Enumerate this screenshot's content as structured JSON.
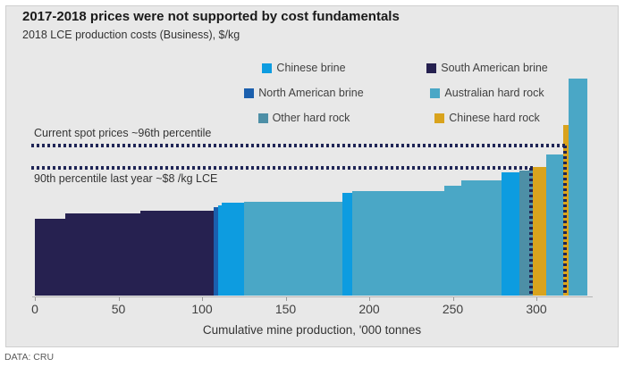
{
  "header": {
    "title": "2017-2018 prices were not supported by cost fundamentals",
    "subtitle": "2018 LCE production costs (Business), $/kg"
  },
  "footer": {
    "source": "DATA: CRU"
  },
  "colors": {
    "panel_background": "#e8e8e8",
    "reference_line": "#1f2556",
    "chinese_brine": "#0d9ce0",
    "south_american_brine": "#262150",
    "north_american_brine": "#1b5fad",
    "australian_hard_rock": "#4aa7c6",
    "other_hard_rock": "#4d8fa6",
    "chinese_hard_rock": "#d9a31d"
  },
  "legend": {
    "items": [
      {
        "label": "Chinese brine",
        "color": "#0d9ce0"
      },
      {
        "label": "South American brine",
        "color": "#262150"
      },
      {
        "label": "North American brine",
        "color": "#1b5fad"
      },
      {
        "label": "Australian hard rock",
        "color": "#4aa7c6"
      },
      {
        "label": "Other hard rock",
        "color": "#4d8fa6"
      },
      {
        "label": "Chinese hard rock",
        "color": "#d9a31d"
      }
    ]
  },
  "chart_data": {
    "type": "bar",
    "variant": "cost-curve",
    "title": "2017-2018 prices were not supported by cost fundamentals",
    "subtitle": "2018 LCE production costs (Business), $/kg",
    "xlabel": "Cumulative mine production, '000 tonnes",
    "ylabel": "2018 LCE production costs (Business), $/kg",
    "xlim": [
      0,
      332
    ],
    "ylim": [
      0,
      14
    ],
    "x_ticks": [
      0,
      50,
      100,
      150,
      200,
      250,
      300
    ],
    "grid": false,
    "legend_position": "top-right",
    "series_colors": {
      "Chinese brine": "#0d9ce0",
      "South American brine": "#262150",
      "North American brine": "#1b5fad",
      "Australian hard rock": "#4aa7c6",
      "Other hard rock": "#4d8fa6",
      "Chinese hard rock": "#d9a31d"
    },
    "segments": [
      {
        "category": "South American brine",
        "x0": 0,
        "x1": 18,
        "cost": 4.8
      },
      {
        "category": "South American brine",
        "x0": 18,
        "x1": 63,
        "cost": 5.15
      },
      {
        "category": "South American brine",
        "x0": 63,
        "x1": 107,
        "cost": 5.3
      },
      {
        "category": "North American brine",
        "x0": 107,
        "x1": 109.5,
        "cost": 5.55
      },
      {
        "category": "Chinese brine",
        "x0": 109.5,
        "x1": 112,
        "cost": 5.65
      },
      {
        "category": "Chinese brine",
        "x0": 112,
        "x1": 125,
        "cost": 5.8
      },
      {
        "category": "Australian hard rock",
        "x0": 125,
        "x1": 184,
        "cost": 5.9
      },
      {
        "category": "Chinese brine",
        "x0": 184,
        "x1": 190,
        "cost": 6.45
      },
      {
        "category": "Australian hard rock",
        "x0": 190,
        "x1": 245,
        "cost": 6.55
      },
      {
        "category": "Australian hard rock",
        "x0": 245,
        "x1": 255,
        "cost": 6.9
      },
      {
        "category": "Australian hard rock",
        "x0": 255,
        "x1": 279,
        "cost": 7.2
      },
      {
        "category": "Chinese brine",
        "x0": 279,
        "x1": 290,
        "cost": 7.7
      },
      {
        "category": "Other hard rock",
        "x0": 290,
        "x1": 298,
        "cost": 7.85
      },
      {
        "category": "Chinese hard rock",
        "x0": 298,
        "x1": 306,
        "cost": 8.05
      },
      {
        "category": "Australian hard rock",
        "x0": 306,
        "x1": 316,
        "cost": 8.85
      },
      {
        "category": "Chinese hard rock",
        "x0": 316,
        "x1": 319.5,
        "cost": 10.7
      },
      {
        "category": "Australian hard rock",
        "x0": 319.5,
        "x1": 330.5,
        "cost": 13.6
      }
    ],
    "reference_lines": [
      {
        "label": "Current spot prices ~96th percentile",
        "cost": 9.4,
        "x_drop": 316.5
      },
      {
        "label": "90th percentile last year ~$8 /kg LCE",
        "cost": 8.0,
        "x_drop": 296.5
      }
    ]
  },
  "axis": {
    "title": "Cumulative mine production, '000 tonnes"
  },
  "annotations": {
    "spot_label": "Current spot prices ~96th percentile",
    "p90_label": "90th percentile last year ~$8 /kg LCE"
  }
}
